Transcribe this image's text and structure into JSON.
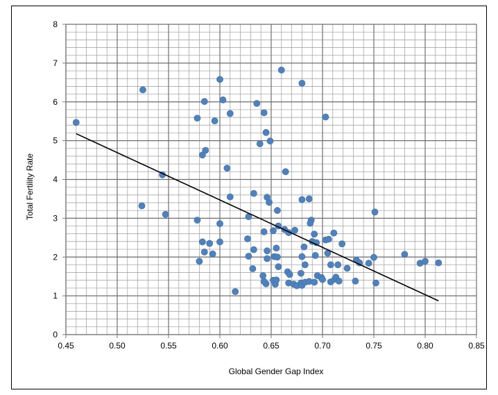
{
  "chart_data": {
    "type": "scatter",
    "title": "",
    "xlabel": "Global Gender Gap Index",
    "ylabel": "Total Fertility Rate",
    "xlim": [
      0.45,
      0.85
    ],
    "ylim": [
      0,
      8
    ],
    "x_ticks": [
      "0.45",
      "0.50",
      "0.55",
      "0.60",
      "0.65",
      "0.70",
      "0.75",
      "0.80",
      "0.85"
    ],
    "y_ticks": [
      "0",
      "1",
      "2",
      "3",
      "4",
      "5",
      "6",
      "7",
      "8"
    ],
    "grid": true,
    "marker_color": "#4F81BD",
    "trendline": {
      "x1": 0.46,
      "y1": 5.18,
      "x2": 0.813,
      "y2": 0.87,
      "color": "#000000"
    },
    "points": [
      [
        0.46,
        5.47
      ],
      [
        0.525,
        6.31
      ],
      [
        0.524,
        3.32
      ],
      [
        0.544,
        4.12
      ],
      [
        0.547,
        3.1
      ],
      [
        0.578,
        5.58
      ],
      [
        0.585,
        6.01
      ],
      [
        0.595,
        5.51
      ],
      [
        0.6,
        6.58
      ],
      [
        0.603,
        6.05
      ],
      [
        0.61,
        5.7
      ],
      [
        0.583,
        4.63
      ],
      [
        0.586,
        4.75
      ],
      [
        0.607,
        4.29
      ],
      [
        0.61,
        3.55
      ],
      [
        0.578,
        2.95
      ],
      [
        0.6,
        2.86
      ],
      [
        0.583,
        2.39
      ],
      [
        0.59,
        2.35
      ],
      [
        0.6,
        2.39
      ],
      [
        0.585,
        2.13
      ],
      [
        0.593,
        2.08
      ],
      [
        0.58,
        1.89
      ],
      [
        0.615,
        1.11
      ],
      [
        0.628,
        3.04
      ],
      [
        0.633,
        3.64
      ],
      [
        0.636,
        5.96
      ],
      [
        0.639,
        4.92
      ],
      [
        0.643,
        5.72
      ],
      [
        0.645,
        5.21
      ],
      [
        0.649,
        4.99
      ],
      [
        0.66,
        6.82
      ],
      [
        0.664,
        4.2
      ],
      [
        0.646,
        3.54
      ],
      [
        0.648,
        3.41
      ],
      [
        0.627,
        2.47
      ],
      [
        0.633,
        2.19
      ],
      [
        0.628,
        2.02
      ],
      [
        0.632,
        1.7
      ],
      [
        0.643,
        2.65
      ],
      [
        0.652,
        2.68
      ],
      [
        0.656,
        3.2
      ],
      [
        0.657,
        2.8
      ],
      [
        0.663,
        2.71
      ],
      [
        0.667,
        2.63
      ],
      [
        0.673,
        2.69
      ],
      [
        0.646,
        2.16
      ],
      [
        0.653,
        2.01
      ],
      [
        0.655,
        2.23
      ],
      [
        0.646,
        1.96
      ],
      [
        0.656,
        2.0
      ],
      [
        0.657,
        1.75
      ],
      [
        0.642,
        1.52
      ],
      [
        0.645,
        1.31
      ],
      [
        0.643,
        1.37
      ],
      [
        0.652,
        1.4
      ],
      [
        0.654,
        1.3
      ],
      [
        0.655,
        1.41
      ],
      [
        0.666,
        1.62
      ],
      [
        0.668,
        1.55
      ],
      [
        0.667,
        1.33
      ],
      [
        0.672,
        1.3
      ],
      [
        0.675,
        1.26
      ],
      [
        0.679,
        1.33
      ],
      [
        0.68,
        1.27
      ],
      [
        0.683,
        1.35
      ],
      [
        0.679,
        1.58
      ],
      [
        0.68,
        6.48
      ],
      [
        0.687,
        3.5
      ],
      [
        0.68,
        3.48
      ],
      [
        0.689,
        2.95
      ],
      [
        0.688,
        2.87
      ],
      [
        0.692,
        2.59
      ],
      [
        0.69,
        2.4
      ],
      [
        0.694,
        2.37
      ],
      [
        0.682,
        2.26
      ],
      [
        0.68,
        2.01
      ],
      [
        0.693,
        2.04
      ],
      [
        0.683,
        1.8
      ],
      [
        0.687,
        1.37
      ],
      [
        0.695,
        1.52
      ],
      [
        0.699,
        1.47
      ],
      [
        0.7,
        1.42
      ],
      [
        0.692,
        1.35
      ],
      [
        0.703,
        2.44
      ],
      [
        0.706,
        2.46
      ],
      [
        0.703,
        5.61
      ],
      [
        0.705,
        2.1
      ],
      [
        0.711,
        2.62
      ],
      [
        0.719,
        2.34
      ],
      [
        0.708,
        1.8
      ],
      [
        0.715,
        1.8
      ],
      [
        0.708,
        1.36
      ],
      [
        0.712,
        1.43
      ],
      [
        0.713,
        1.48
      ],
      [
        0.716,
        1.38
      ],
      [
        0.724,
        1.71
      ],
      [
        0.732,
        1.38
      ],
      [
        0.733,
        1.92
      ],
      [
        0.736,
        1.85
      ],
      [
        0.745,
        1.84
      ],
      [
        0.75,
        1.99
      ],
      [
        0.751,
        3.16
      ],
      [
        0.752,
        1.33
      ],
      [
        0.78,
        2.07
      ],
      [
        0.795,
        1.84
      ],
      [
        0.8,
        1.89
      ],
      [
        0.813,
        1.85
      ]
    ]
  }
}
